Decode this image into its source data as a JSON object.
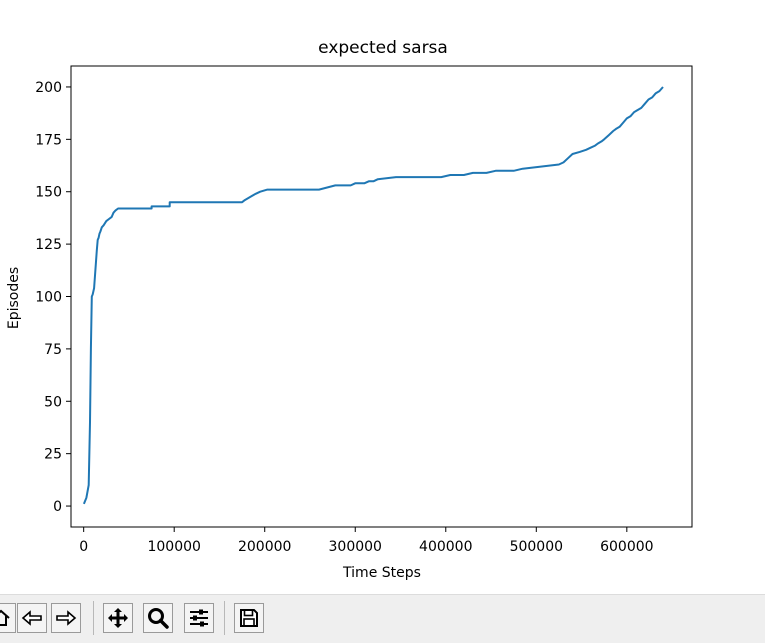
{
  "chart_data": {
    "type": "line",
    "title": "expected sarsa",
    "xlabel": "Time Steps",
    "ylabel": "Episodes",
    "xlim": [
      -14000,
      672000
    ],
    "ylim": [
      -10,
      210
    ],
    "xticks": [
      0,
      100000,
      200000,
      300000,
      400000,
      500000,
      600000
    ],
    "yticks": [
      0,
      25,
      50,
      75,
      100,
      125,
      150,
      175,
      200
    ],
    "grid": false,
    "line_color": "#1f77b4",
    "series": [
      {
        "x": [
          200,
          3000,
          5500,
          7000,
          8000,
          9000,
          10000,
          11500,
          13500,
          14500,
          15500,
          16500,
          17500,
          18500,
          20000,
          22000,
          25000,
          28000,
          31000,
          33000,
          35000,
          38000,
          42000,
          60000,
          75000,
          75000,
          95000,
          95000,
          120000,
          150000,
          175000,
          178000,
          182000,
          186000,
          190000,
          195000,
          203000,
          230000,
          260000,
          278000,
          295000,
          300000,
          310000,
          315000,
          320000,
          325000,
          345000,
          365000,
          395000,
          405000,
          420000,
          430000,
          445000,
          455000,
          475000,
          485000,
          505000,
          525000,
          530000,
          535000,
          540000,
          548000,
          555000,
          560000,
          565000,
          568000,
          572000,
          575000,
          580000,
          585000,
          588000,
          592000,
          596000,
          600000,
          604000,
          608000,
          612000,
          616000,
          620000,
          624000,
          628000,
          632000,
          636000,
          640000
        ],
        "y": [
          1,
          4,
          10,
          40,
          75,
          100,
          101,
          104,
          116,
          122,
          127,
          128,
          130,
          131,
          133,
          134,
          136,
          137,
          138,
          140,
          141,
          142,
          142,
          142,
          142,
          143,
          143,
          145,
          145,
          145,
          145,
          146,
          147,
          148,
          149,
          150,
          151,
          151,
          151,
          153,
          153,
          154,
          154,
          155,
          155,
          156,
          157,
          157,
          157,
          158,
          158,
          159,
          159,
          160,
          160,
          161,
          162,
          163,
          164,
          166,
          168,
          169,
          170,
          171,
          172,
          173,
          174,
          175,
          177,
          179,
          180,
          181,
          183,
          185,
          186,
          188,
          189,
          190,
          192,
          194,
          195,
          197,
          198,
          200
        ]
      }
    ]
  },
  "toolbar": {
    "buttons": [
      "home-icon",
      "back-icon",
      "forward-icon",
      "pan-icon",
      "zoom-icon",
      "configure-subplots-icon",
      "save-icon"
    ]
  }
}
